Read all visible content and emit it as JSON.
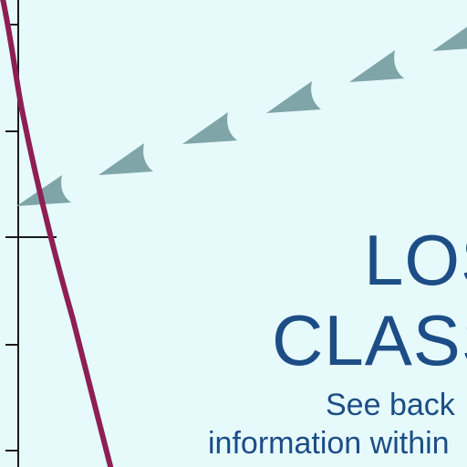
{
  "colors": {
    "background": "#e6fafc",
    "axis": "#1a1a1a",
    "curve": "#8e1f55",
    "arrows": "#7fa5a8",
    "text": "#1c4d86"
  },
  "heading": {
    "line1": "LOS",
    "line2": "CLASS"
  },
  "note": {
    "line1": "See back",
    "line2": "information within"
  }
}
